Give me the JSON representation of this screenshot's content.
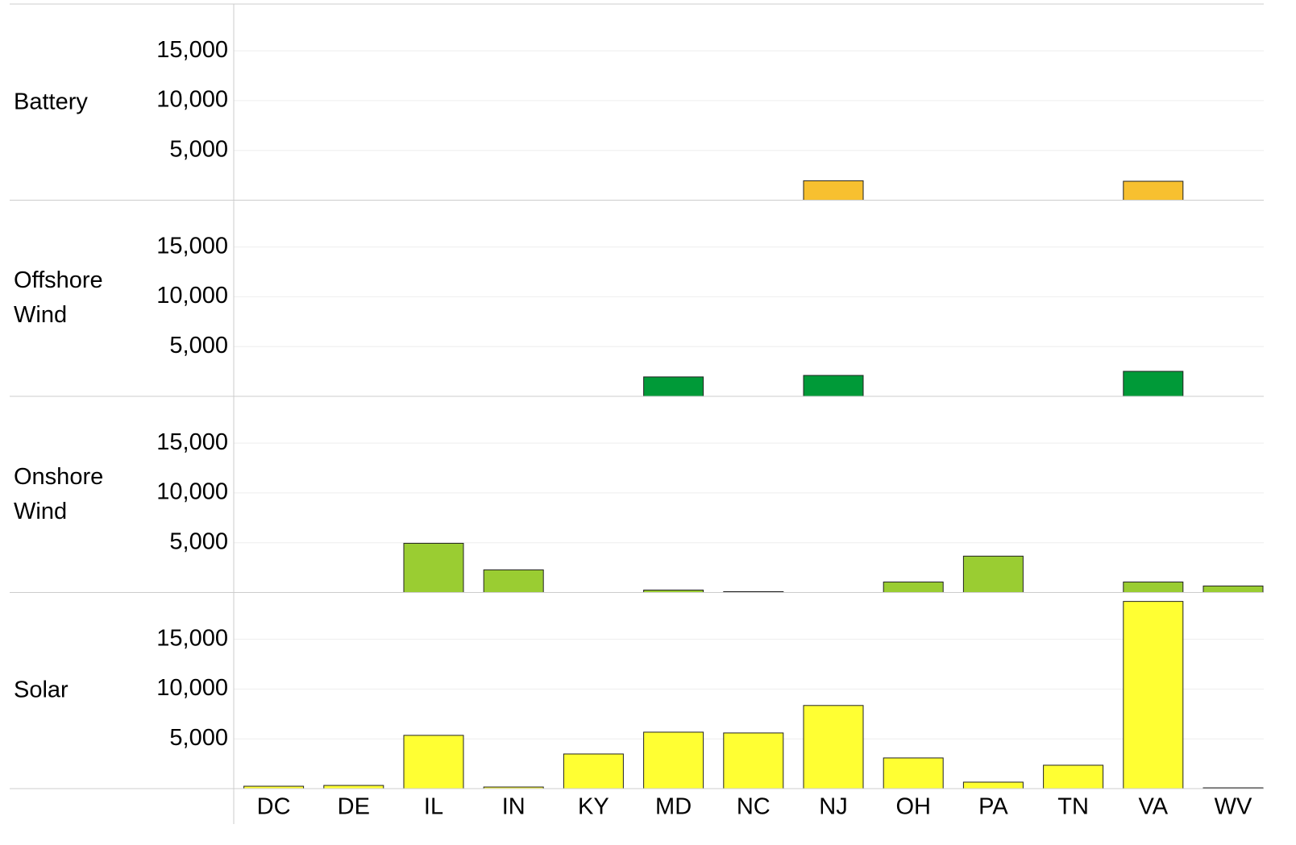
{
  "chart_data": {
    "type": "bar",
    "categories": [
      "DC",
      "DE",
      "IL",
      "IN",
      "KY",
      "MD",
      "NC",
      "NJ",
      "OH",
      "PA",
      "TN",
      "VA",
      "WV"
    ],
    "series": [
      {
        "name": "Battery",
        "color": "#f7c030",
        "values": [
          null,
          null,
          null,
          null,
          null,
          null,
          null,
          1950,
          null,
          null,
          null,
          1900,
          null
        ]
      },
      {
        "name": "Offshore Wind",
        "color": "#009a38",
        "values": [
          null,
          null,
          null,
          null,
          null,
          1950,
          null,
          2100,
          null,
          null,
          null,
          2510,
          null
        ]
      },
      {
        "name": "Onshore Wind",
        "color": "#9acd32",
        "values": [
          null,
          null,
          4940,
          2270,
          null,
          240,
          80,
          null,
          1050,
          3650,
          null,
          1050,
          650
        ]
      },
      {
        "name": "Solar",
        "color": "#ffff33",
        "values": [
          240,
          320,
          5350,
          160,
          3480,
          5670,
          5590,
          8350,
          3080,
          650,
          2350,
          18800,
          80
        ]
      }
    ],
    "ylim": [
      0,
      19700
    ],
    "yticks": [
      {
        "value": 5000,
        "label": "5,000"
      },
      {
        "value": 10000,
        "label": "10,000"
      },
      {
        "value": 15000,
        "label": "15,000"
      }
    ],
    "grid": true
  }
}
